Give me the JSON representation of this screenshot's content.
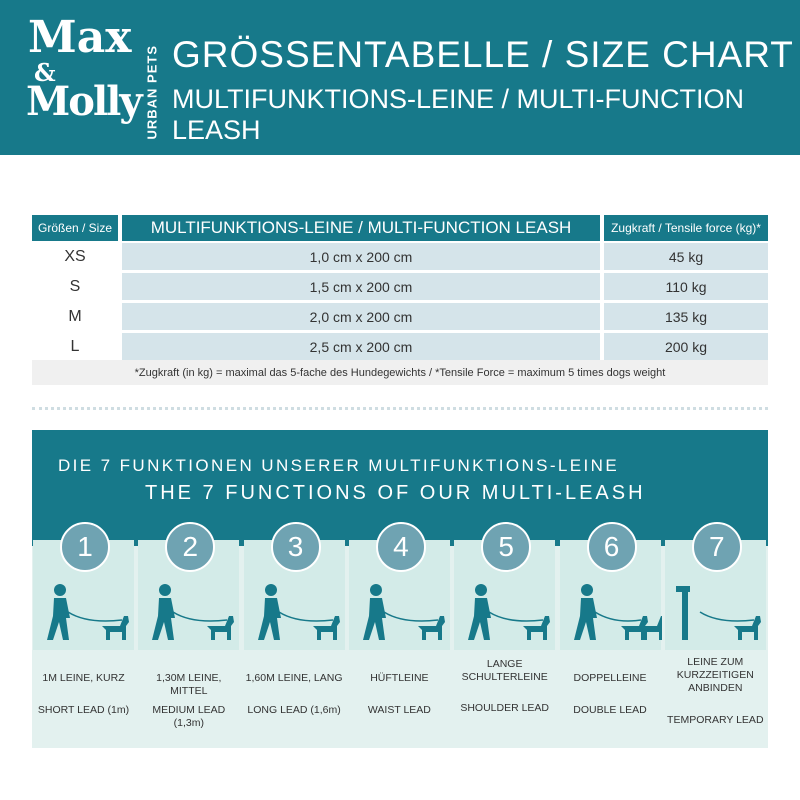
{
  "header": {
    "logo": {
      "brand_top": "Max",
      "ampersand": "&",
      "brand_bottom": "Molly",
      "tagline": "URBAN PETS"
    },
    "title": "GRÖSSENTABELLE / SIZE CHART",
    "subtitle": "MULTIFUNKTIONS-LEINE / MULTI-FUNCTION LEASH"
  },
  "size_table": {
    "columns": [
      "Größen / Size",
      "MULTIFUNKTIONS-LEINE / MULTI-FUNCTION LEASH",
      "Zugkraft / Tensile force (kg)*"
    ],
    "rows": [
      [
        "XS",
        "1,0 cm x 200 cm",
        "45 kg"
      ],
      [
        "S",
        "1,5 cm x 200 cm",
        "110 kg"
      ],
      [
        "M",
        "2,0 cm x 200 cm",
        "135 kg"
      ],
      [
        "L",
        "2,5 cm x 200 cm",
        "200 kg"
      ]
    ],
    "footnote": "*Zugkraft (in kg) = maximal das 5-fache des Hundegewichts / *Tensile Force = maximum 5 times dogs weight"
  },
  "functions": {
    "title_de": "DIE 7 FUNKTIONEN UNSERER MULTIFUNKTIONS-LEINE",
    "title_en": "THE 7 FUNCTIONS OF OUR MULTI-LEASH",
    "items": [
      {
        "number": 1,
        "label_de": "1M LEINE, KURZ",
        "label_en": "SHORT LEAD (1m)"
      },
      {
        "number": 2,
        "label_de": "1,30M LEINE, MITTEL",
        "label_en": "MEDIUM LEAD (1,3m)"
      },
      {
        "number": 3,
        "label_de": "1,60M LEINE, LANG",
        "label_en": "LONG LEAD (1,6m)"
      },
      {
        "number": 4,
        "label_de": "HÜFTLEINE",
        "label_en": "WAIST LEAD"
      },
      {
        "number": 5,
        "label_de": "LANGE SCHULTERLEINE",
        "label_en": "SHOULDER LEAD"
      },
      {
        "number": 6,
        "label_de": "DOPPELLEINE",
        "label_en": "DOUBLE LEAD"
      },
      {
        "number": 7,
        "label_de": "LEINE ZUM KURZZEITIGEN ANBINDEN",
        "label_en": "TEMPORARY LEAD"
      }
    ]
  }
}
